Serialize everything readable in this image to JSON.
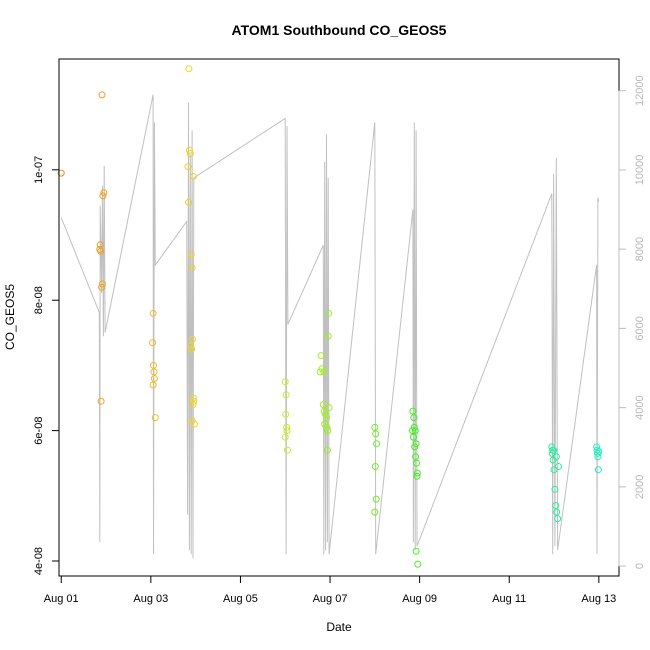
{
  "chart_data": {
    "type": "scatter",
    "title": "ATOM1 Southbound CO_GEOS5",
    "xlabel": "Date",
    "ylabel": "CO_GEOS5",
    "x_ticks": [
      "Aug 01",
      "Aug 03",
      "Aug 05",
      "Aug 07",
      "Aug 09",
      "Aug 11",
      "Aug 13"
    ],
    "y_ticks": [
      "4e-08",
      "6e-08",
      "8e-08",
      "1e-07"
    ],
    "y2_ticks": [
      "0",
      "2000",
      "4000",
      "6000",
      "8000",
      "10000",
      "12000"
    ],
    "xlim": [
      0.95,
      13.45
    ],
    "ylim": [
      3.77e-08,
      1.17e-07
    ],
    "y2lim": [
      -250,
      12800
    ],
    "grid": false,
    "colors": {
      "altitude_line": "#c0c0c0",
      "point_gradient": [
        "#f08a20",
        "#f0f020",
        "#40f020",
        "#20f0c0"
      ]
    },
    "series": [
      {
        "type": "points",
        "values": [
          [
            1.0,
            9.95e-08
          ],
          [
            1.87,
            8.85e-08
          ],
          [
            1.86,
            8.78e-08
          ],
          [
            1.88,
            8.75e-08
          ],
          [
            1.9,
            8.2e-08
          ],
          [
            1.92,
            8.25e-08
          ],
          [
            1.93,
            9.6e-08
          ],
          [
            1.95,
            9.65e-08
          ],
          [
            1.89,
            6.45e-08
          ],
          [
            1.91,
            1.115e-07
          ],
          [
            3.05,
            7.8e-08
          ],
          [
            3.04,
            7.35e-08
          ],
          [
            3.06,
            7e-08
          ],
          [
            3.07,
            6.9e-08
          ],
          [
            3.08,
            6.8e-08
          ],
          [
            3.05,
            6.7e-08
          ],
          [
            3.1,
            6.2e-08
          ],
          [
            3.85,
            1.155e-07
          ],
          [
            3.83,
            1.005e-07
          ],
          [
            3.84,
            9.5e-08
          ],
          [
            3.86,
            1.03e-07
          ],
          [
            3.88,
            1.025e-07
          ],
          [
            3.9,
            8.7e-08
          ],
          [
            3.92,
            8.5e-08
          ],
          [
            3.93,
            7.4e-08
          ],
          [
            3.89,
            7.3e-08
          ],
          [
            3.91,
            7.25e-08
          ],
          [
            3.95,
            6.5e-08
          ],
          [
            3.96,
            6.45e-08
          ],
          [
            3.94,
            6.4e-08
          ],
          [
            3.92,
            6.15e-08
          ],
          [
            3.97,
            6.1e-08
          ],
          [
            3.95,
            9.9e-08
          ],
          [
            6.0,
            6.75e-08
          ],
          [
            6.02,
            6.55e-08
          ],
          [
            6.01,
            6.25e-08
          ],
          [
            6.03,
            6.05e-08
          ],
          [
            6.04,
            6e-08
          ],
          [
            6.0,
            5.9e-08
          ],
          [
            6.05,
            5.7e-08
          ],
          [
            6.8,
            7.15e-08
          ],
          [
            6.78,
            6.9e-08
          ],
          [
            6.82,
            6.95e-08
          ],
          [
            6.85,
            6.4e-08
          ],
          [
            6.87,
            6.3e-08
          ],
          [
            6.9,
            6.25e-08
          ],
          [
            6.92,
            6.2e-08
          ],
          [
            6.88,
            6.1e-08
          ],
          [
            6.93,
            6.05e-08
          ],
          [
            6.95,
            6e-08
          ],
          [
            6.97,
            7.8e-08
          ],
          [
            6.96,
            7.45e-08
          ],
          [
            6.94,
            5.7e-08
          ],
          [
            6.98,
            6.35e-08
          ],
          [
            6.86,
            6.9e-08
          ],
          [
            8.0,
            6.05e-08
          ],
          [
            8.02,
            5.95e-08
          ],
          [
            8.04,
            5.8e-08
          ],
          [
            8.01,
            5.45e-08
          ],
          [
            8.03,
            4.95e-08
          ],
          [
            8.0,
            4.75e-08
          ],
          [
            8.85,
            6.3e-08
          ],
          [
            8.87,
            6.2e-08
          ],
          [
            8.88,
            6.05e-08
          ],
          [
            8.9,
            6e-08
          ],
          [
            8.86,
            5.9e-08
          ],
          [
            8.92,
            5.8e-08
          ],
          [
            8.89,
            5.75e-08
          ],
          [
            8.91,
            5.6e-08
          ],
          [
            8.93,
            5.5e-08
          ],
          [
            8.95,
            5.35e-08
          ],
          [
            8.94,
            5.3e-08
          ],
          [
            8.92,
            4.15e-08
          ],
          [
            8.96,
            3.95e-08
          ],
          [
            8.84,
            6e-08
          ],
          [
            11.95,
            5.75e-08
          ],
          [
            11.97,
            5.7e-08
          ],
          [
            11.96,
            5.65e-08
          ],
          [
            11.98,
            5.55e-08
          ],
          [
            12.0,
            5.4e-08
          ],
          [
            12.02,
            5.1e-08
          ],
          [
            12.04,
            4.85e-08
          ],
          [
            12.06,
            4.75e-08
          ],
          [
            12.08,
            4.65e-08
          ],
          [
            12.05,
            5.6e-08
          ],
          [
            12.1,
            5.45e-08
          ],
          [
            11.99,
            5.7e-08
          ],
          [
            12.95,
            5.75e-08
          ],
          [
            12.96,
            5.7e-08
          ],
          [
            12.97,
            5.65e-08
          ],
          [
            12.98,
            5.6e-08
          ],
          [
            12.99,
            5.4e-08
          ],
          [
            13.0,
            5.68e-08
          ]
        ]
      },
      {
        "type": "line",
        "axis": "right",
        "values": [
          [
            1.0,
            8800
          ],
          [
            1.85,
            6400
          ],
          [
            1.86,
            600
          ],
          [
            1.87,
            9100
          ],
          [
            1.9,
            6900
          ],
          [
            1.92,
            9600
          ],
          [
            1.94,
            5800
          ],
          [
            1.96,
            10100
          ],
          [
            1.98,
            5900
          ],
          [
            3.05,
            11900
          ],
          [
            3.06,
            300
          ],
          [
            3.08,
            11200
          ],
          [
            3.1,
            7600
          ],
          [
            3.8,
            8700
          ],
          [
            3.82,
            1300
          ],
          [
            3.84,
            11700
          ],
          [
            3.86,
            400
          ],
          [
            3.88,
            10400
          ],
          [
            3.9,
            300
          ],
          [
            3.92,
            11000
          ],
          [
            3.94,
            200
          ],
          [
            3.96,
            9800
          ],
          [
            6.0,
            11300
          ],
          [
            6.02,
            300
          ],
          [
            6.04,
            11100
          ],
          [
            6.06,
            6100
          ],
          [
            6.85,
            8100
          ],
          [
            6.86,
            300
          ],
          [
            6.88,
            10200
          ],
          [
            6.9,
            400
          ],
          [
            6.92,
            10900
          ],
          [
            6.94,
            600
          ],
          [
            6.96,
            9800
          ],
          [
            6.98,
            300
          ],
          [
            8.0,
            11200
          ],
          [
            8.02,
            300
          ],
          [
            8.85,
            9000
          ],
          [
            8.86,
            600
          ],
          [
            8.88,
            11200
          ],
          [
            8.9,
            400
          ],
          [
            8.92,
            11000
          ],
          [
            8.94,
            500
          ],
          [
            11.95,
            9400
          ],
          [
            11.97,
            300
          ],
          [
            11.99,
            9900
          ],
          [
            12.02,
            500
          ],
          [
            12.05,
            10300
          ],
          [
            12.08,
            400
          ],
          [
            12.95,
            7600
          ],
          [
            12.96,
            300
          ],
          [
            12.98,
            9300
          ],
          [
            13.0,
            9200
          ]
        ]
      }
    ]
  }
}
